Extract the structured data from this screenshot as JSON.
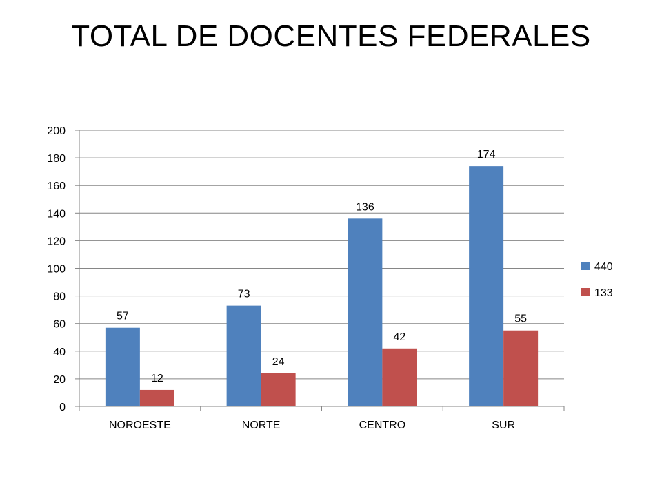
{
  "chart_data": {
    "type": "bar",
    "title": "TOTAL DE DOCENTES FEDERALES",
    "xlabel": "",
    "ylabel": "",
    "categories": [
      "NOROESTE",
      "NORTE",
      "CENTRO",
      "SUR"
    ],
    "series": [
      {
        "name": "440",
        "color": "#4F81BD",
        "values": [
          57,
          73,
          136,
          174
        ]
      },
      {
        "name": "133",
        "color": "#C0504D",
        "values": [
          12,
          24,
          42,
          55
        ]
      }
    ],
    "ylim": [
      0,
      200
    ],
    "yticks": [
      0,
      20,
      40,
      60,
      80,
      100,
      120,
      140,
      160,
      180,
      200
    ],
    "grid": true,
    "legend": "right",
    "data_labels": true
  }
}
